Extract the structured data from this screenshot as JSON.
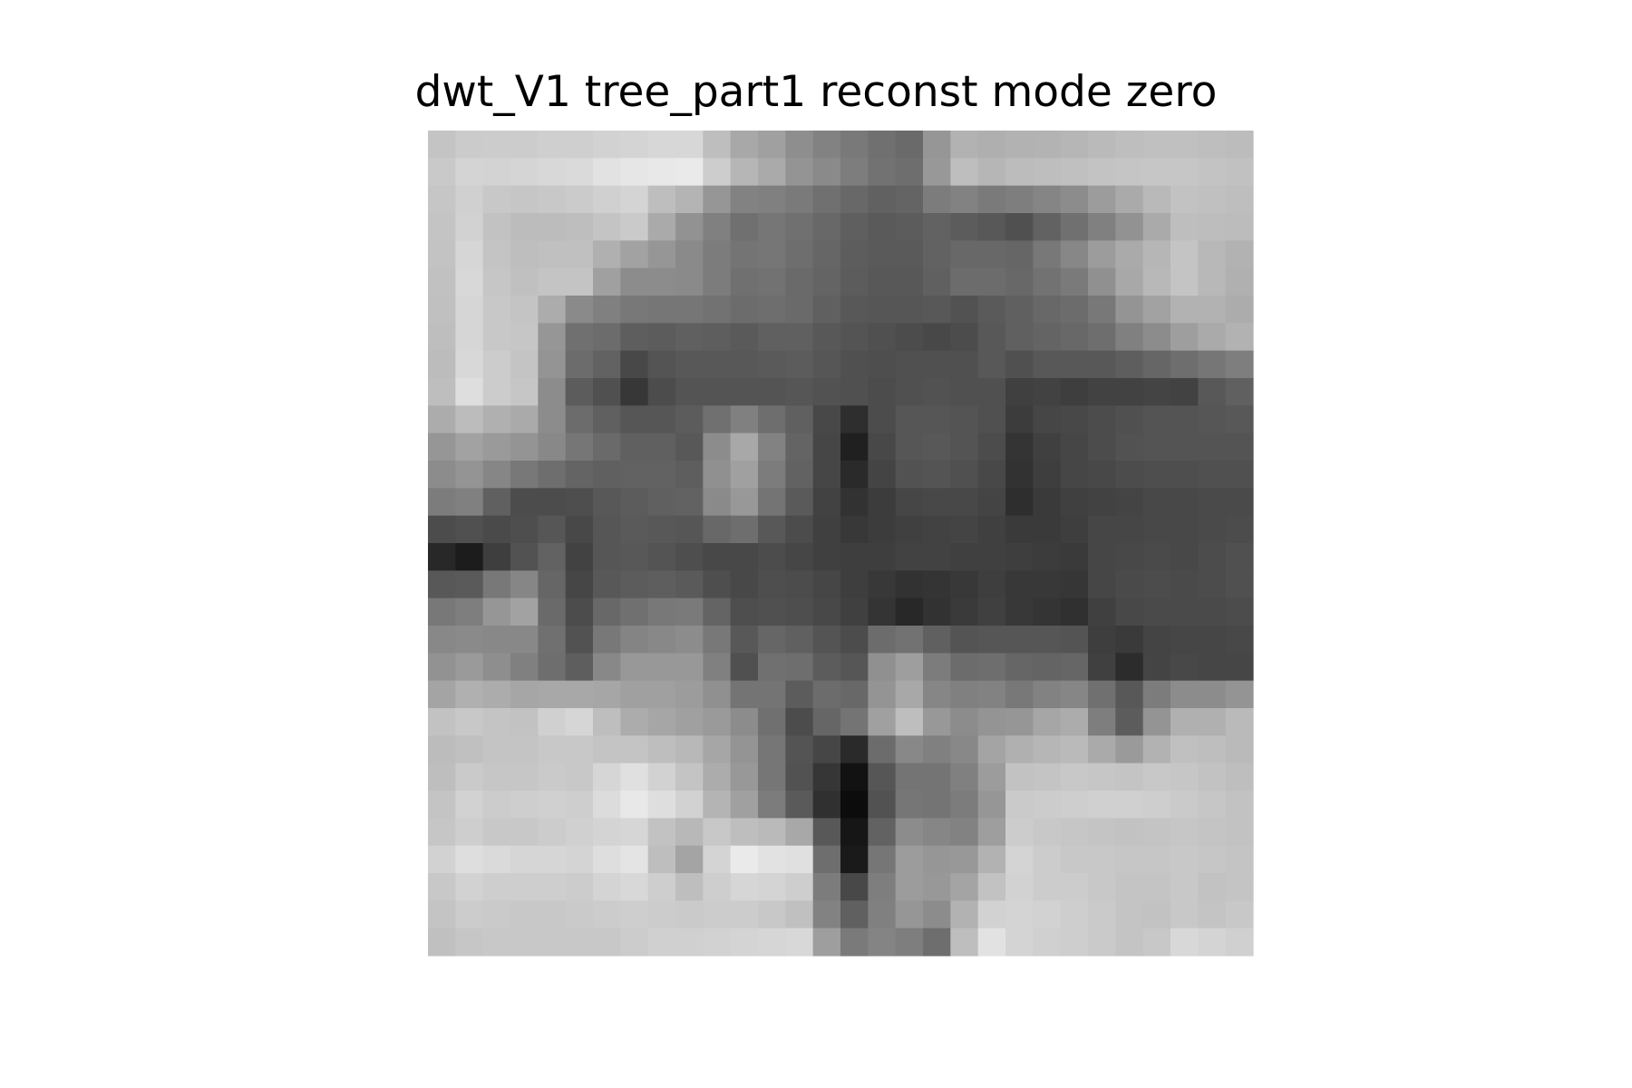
{
  "chart_data": {
    "type": "heatmap",
    "title": "dwt_V1 tree_part1 reconst mode zero",
    "colormap": "gray",
    "axes_visible": false,
    "grid": false,
    "rows": 30,
    "cols": 30,
    "values": [
      [
        196,
        203,
        204,
        204,
        207,
        207,
        210,
        212,
        215,
        215,
        190,
        168,
        160,
        142,
        130,
        121,
        112,
        106,
        150,
        178,
        175,
        178,
        179,
        182,
        186,
        190,
        192,
        192,
        190,
        188
      ],
      [
        201,
        212,
        211,
        213,
        216,
        218,
        226,
        230,
        232,
        234,
        205,
        182,
        170,
        148,
        138,
        125,
        114,
        110,
        152,
        190,
        182,
        188,
        190,
        192,
        195,
        197,
        198,
        198,
        195,
        193
      ],
      [
        198,
        208,
        200,
        198,
        200,
        203,
        208,
        212,
        190,
        180,
        150,
        130,
        128,
        122,
        112,
        104,
        97,
        100,
        124,
        130,
        122,
        126,
        133,
        140,
        156,
        170,
        185,
        194,
        192,
        190
      ],
      [
        196,
        210,
        194,
        188,
        188,
        190,
        196,
        202,
        170,
        146,
        128,
        112,
        118,
        112,
        104,
        95,
        90,
        92,
        98,
        92,
        88,
        80,
        98,
        112,
        128,
        146,
        170,
        190,
        189,
        188
      ],
      [
        195,
        214,
        196,
        190,
        192,
        192,
        176,
        162,
        150,
        138,
        124,
        116,
        118,
        110,
        102,
        93,
        90,
        90,
        98,
        104,
        104,
        102,
        120,
        135,
        156,
        170,
        182,
        196,
        184,
        178
      ],
      [
        193,
        216,
        198,
        192,
        196,
        196,
        160,
        140,
        140,
        138,
        124,
        112,
        114,
        106,
        100,
        92,
        88,
        88,
        96,
        108,
        108,
        104,
        114,
        122,
        144,
        168,
        184,
        196,
        184,
        176
      ],
      [
        192,
        214,
        200,
        196,
        172,
        138,
        128,
        120,
        118,
        118,
        114,
        108,
        110,
        106,
        96,
        88,
        86,
        86,
        88,
        82,
        90,
        96,
        104,
        108,
        120,
        148,
        162,
        178,
        178,
        172
      ],
      [
        190,
        214,
        200,
        198,
        150,
        112,
        108,
        94,
        92,
        96,
        94,
        90,
        96,
        96,
        88,
        84,
        80,
        76,
        72,
        76,
        88,
        96,
        100,
        104,
        110,
        128,
        140,
        158,
        170,
        178
      ],
      [
        188,
        216,
        204,
        196,
        148,
        108,
        98,
        72,
        84,
        88,
        88,
        88,
        90,
        92,
        86,
        80,
        78,
        80,
        80,
        80,
        88,
        80,
        88,
        88,
        88,
        94,
        102,
        110,
        118,
        126
      ],
      [
        190,
        222,
        204,
        198,
        140,
        92,
        80,
        55,
        76,
        84,
        84,
        84,
        84,
        86,
        82,
        80,
        76,
        80,
        82,
        80,
        80,
        64,
        66,
        62,
        66,
        66,
        68,
        66,
        88,
        96
      ],
      [
        172,
        188,
        176,
        170,
        140,
        108,
        96,
        86,
        86,
        92,
        112,
        128,
        110,
        96,
        72,
        46,
        76,
        86,
        86,
        84,
        80,
        60,
        70,
        72,
        76,
        80,
        84,
        84,
        86,
        88
      ],
      [
        150,
        162,
        154,
        148,
        136,
        118,
        106,
        96,
        96,
        88,
        140,
        168,
        130,
        100,
        70,
        32,
        72,
        86,
        88,
        84,
        76,
        52,
        64,
        70,
        76,
        82,
        84,
        84,
        84,
        84
      ],
      [
        140,
        148,
        134,
        120,
        110,
        100,
        96,
        98,
        98,
        94,
        144,
        160,
        124,
        98,
        70,
        42,
        68,
        82,
        84,
        80,
        72,
        50,
        62,
        70,
        72,
        76,
        78,
        78,
        80,
        80
      ],
      [
        124,
        128,
        96,
        76,
        76,
        78,
        88,
        92,
        96,
        98,
        138,
        152,
        116,
        90,
        66,
        50,
        60,
        70,
        72,
        72,
        68,
        46,
        58,
        64,
        66,
        68,
        72,
        72,
        74,
        74
      ],
      [
        76,
        80,
        74,
        78,
        86,
        72,
        86,
        90,
        88,
        86,
        104,
        110,
        88,
        76,
        64,
        56,
        60,
        64,
        66,
        68,
        64,
        58,
        58,
        62,
        70,
        70,
        72,
        72,
        74,
        76
      ],
      [
        40,
        28,
        62,
        82,
        98,
        66,
        86,
        88,
        84,
        78,
        72,
        72,
        76,
        70,
        64,
        62,
        62,
        66,
        66,
        64,
        64,
        62,
        60,
        58,
        70,
        72,
        74,
        72,
        76,
        80
      ],
      [
        88,
        90,
        120,
        134,
        102,
        70,
        88,
        92,
        94,
        90,
        78,
        72,
        78,
        76,
        70,
        62,
        56,
        50,
        52,
        56,
        62,
        56,
        56,
        54,
        70,
        74,
        76,
        74,
        76,
        80
      ],
      [
        120,
        126,
        150,
        162,
        106,
        76,
        104,
        112,
        120,
        122,
        100,
        78,
        80,
        78,
        72,
        64,
        52,
        40,
        50,
        58,
        64,
        56,
        52,
        48,
        64,
        72,
        74,
        74,
        74,
        76
      ],
      [
        136,
        138,
        136,
        136,
        112,
        82,
        120,
        132,
        136,
        140,
        120,
        88,
        102,
        96,
        84,
        76,
        108,
        114,
        96,
        84,
        86,
        86,
        86,
        84,
        62,
        58,
        68,
        70,
        70,
        72
      ],
      [
        146,
        154,
        142,
        128,
        110,
        94,
        136,
        152,
        152,
        152,
        128,
        80,
        112,
        110,
        92,
        86,
        144,
        158,
        124,
        108,
        110,
        102,
        100,
        102,
        64,
        44,
        68,
        72,
        70,
        70
      ],
      [
        164,
        176,
        172,
        166,
        168,
        168,
        166,
        160,
        160,
        156,
        144,
        116,
        116,
        92,
        108,
        104,
        148,
        168,
        134,
        128,
        130,
        120,
        130,
        134,
        112,
        88,
        124,
        140,
        140,
        148
      ],
      [
        194,
        200,
        196,
        194,
        208,
        214,
        190,
        172,
        166,
        160,
        154,
        140,
        112,
        76,
        102,
        116,
        160,
        190,
        152,
        140,
        148,
        150,
        166,
        172,
        126,
        92,
        148,
        176,
        176,
        186
      ],
      [
        188,
        192,
        196,
        196,
        200,
        200,
        196,
        196,
        190,
        184,
        166,
        148,
        118,
        84,
        70,
        42,
        108,
        136,
        128,
        136,
        164,
        176,
        182,
        186,
        170,
        154,
        178,
        192,
        190,
        186
      ],
      [
        190,
        202,
        198,
        198,
        202,
        200,
        214,
        224,
        210,
        196,
        172,
        152,
        118,
        82,
        54,
        18,
        86,
        116,
        116,
        128,
        156,
        194,
        196,
        200,
        198,
        196,
        200,
        198,
        194,
        190
      ],
      [
        196,
        210,
        204,
        206,
        208,
        206,
        220,
        232,
        222,
        210,
        180,
        160,
        124,
        90,
        48,
        12,
        82,
        118,
        116,
        124,
        150,
        202,
        204,
        206,
        208,
        208,
        206,
        202,
        198,
        194
      ],
      [
        198,
        206,
        200,
        200,
        204,
        208,
        212,
        214,
        194,
        184,
        200,
        190,
        186,
        168,
        88,
        22,
        98,
        140,
        134,
        130,
        158,
        204,
        200,
        198,
        196,
        194,
        196,
        198,
        196,
        194
      ],
      [
        210,
        222,
        218,
        214,
        214,
        212,
        222,
        228,
        190,
        164,
        212,
        234,
        226,
        224,
        110,
        26,
        118,
        156,
        150,
        152,
        178,
        212,
        204,
        200,
        200,
        198,
        198,
        200,
        198,
        196
      ],
      [
        200,
        210,
        206,
        206,
        206,
        204,
        212,
        216,
        206,
        190,
        206,
        214,
        212,
        206,
        124,
        72,
        126,
        156,
        152,
        164,
        194,
        210,
        204,
        204,
        200,
        196,
        196,
        200,
        194,
        196
      ],
      [
        196,
        204,
        202,
        200,
        200,
        202,
        204,
        206,
        204,
        202,
        204,
        204,
        200,
        192,
        130,
        96,
        128,
        150,
        140,
        178,
        210,
        212,
        210,
        206,
        202,
        196,
        194,
        200,
        196,
        200
      ],
      [
        192,
        198,
        200,
        200,
        200,
        200,
        200,
        204,
        208,
        208,
        210,
        212,
        214,
        216,
        158,
        122,
        132,
        126,
        110,
        190,
        226,
        212,
        208,
        206,
        202,
        196,
        200,
        216,
        212,
        208
      ]
    ]
  }
}
